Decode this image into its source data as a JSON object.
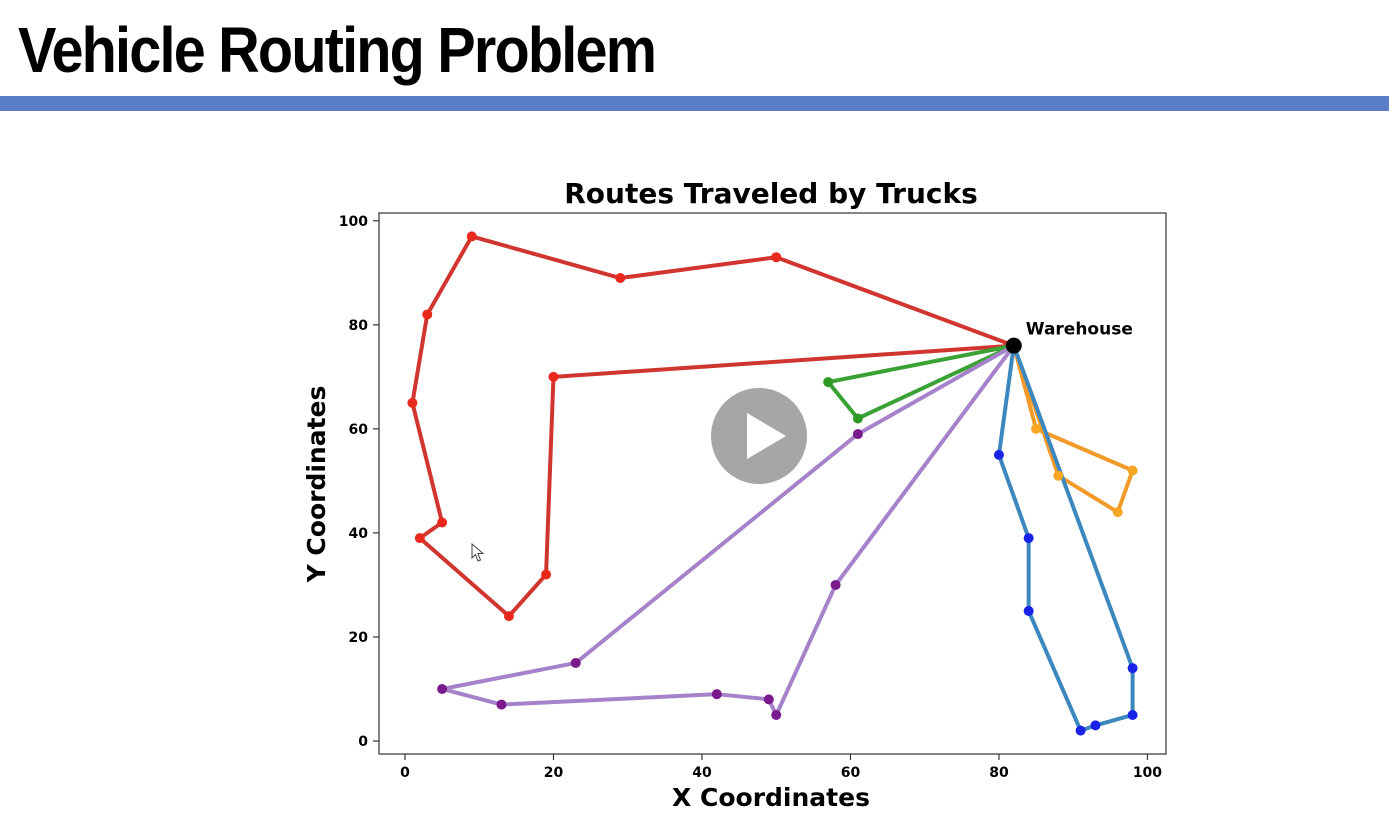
{
  "slide": {
    "title": "Vehicle Routing Problem",
    "accent_color": "#5b7fc7"
  },
  "player": {
    "play_icon": "play-icon",
    "cursor_icon": "mouse-pointer-icon"
  },
  "chart_data": {
    "type": "line",
    "title": "Routes Traveled by Trucks",
    "xlabel": "X Coordinates",
    "ylabel": "Y Coordinates",
    "xlim": [
      -3.5,
      102.5
    ],
    "ylim": [
      -2.5,
      101.5
    ],
    "xticks": [
      0,
      20,
      40,
      60,
      80,
      100
    ],
    "yticks": [
      0,
      20,
      40,
      60,
      80,
      100
    ],
    "grid": false,
    "depot": {
      "label": "Warehouse",
      "x": 82,
      "y": 76,
      "color": "#000000"
    },
    "routes": [
      {
        "line_color": "#d0362f",
        "point_color": "#e8291c",
        "points": [
          [
            82,
            76
          ],
          [
            50,
            93
          ],
          [
            29,
            89
          ],
          [
            9,
            97
          ],
          [
            3,
            82
          ],
          [
            1,
            65
          ],
          [
            5,
            42
          ],
          [
            2,
            39
          ],
          [
            14,
            24
          ],
          [
            19,
            32
          ],
          [
            20,
            70
          ],
          [
            82,
            76
          ]
        ]
      },
      {
        "line_color": "#3aa235",
        "point_color": "#2d9a25",
        "points": [
          [
            82,
            76
          ],
          [
            57,
            69
          ],
          [
            61,
            62
          ],
          [
            82,
            76
          ]
        ]
      },
      {
        "line_color": "#a582c9",
        "point_color": "#7a1a8c",
        "points": [
          [
            82,
            76
          ],
          [
            61,
            59
          ],
          [
            23,
            15
          ],
          [
            5,
            10
          ],
          [
            13,
            7
          ],
          [
            42,
            9
          ],
          [
            49,
            8
          ],
          [
            50,
            5
          ],
          [
            58,
            30
          ],
          [
            82,
            76
          ]
        ]
      },
      {
        "line_color": "#f29b2a",
        "point_color": "#f5a623",
        "points": [
          [
            82,
            76
          ],
          [
            85,
            60
          ],
          [
            98,
            52
          ],
          [
            96,
            44
          ],
          [
            88,
            51
          ],
          [
            82,
            76
          ]
        ]
      },
      {
        "line_color": "#3b87be",
        "point_color": "#1a23e8",
        "points": [
          [
            82,
            76
          ],
          [
            80,
            55
          ],
          [
            84,
            39
          ],
          [
            84,
            25
          ],
          [
            91,
            2
          ],
          [
            93,
            3
          ],
          [
            98,
            5
          ],
          [
            98,
            14
          ],
          [
            82,
            76
          ]
        ]
      }
    ]
  }
}
